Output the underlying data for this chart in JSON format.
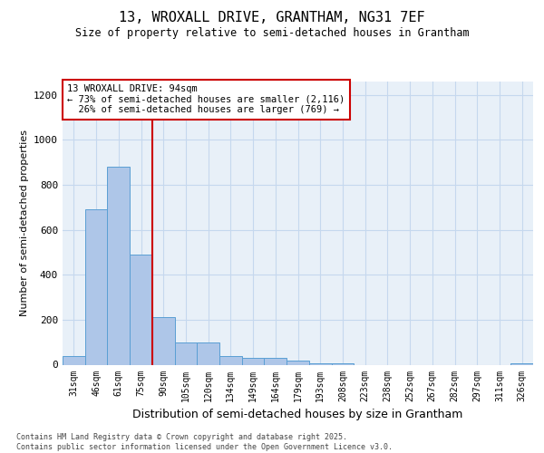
{
  "title_line1": "13, WROXALL DRIVE, GRANTHAM, NG31 7EF",
  "title_line2": "Size of property relative to semi-detached houses in Grantham",
  "xlabel": "Distribution of semi-detached houses by size in Grantham",
  "ylabel": "Number of semi-detached properties",
  "categories": [
    "31sqm",
    "46sqm",
    "61sqm",
    "75sqm",
    "90sqm",
    "105sqm",
    "120sqm",
    "134sqm",
    "149sqm",
    "164sqm",
    "179sqm",
    "193sqm",
    "208sqm",
    "223sqm",
    "238sqm",
    "252sqm",
    "267sqm",
    "282sqm",
    "297sqm",
    "311sqm",
    "326sqm"
  ],
  "values": [
    40,
    690,
    880,
    490,
    210,
    100,
    100,
    40,
    30,
    30,
    20,
    5,
    5,
    0,
    0,
    0,
    0,
    0,
    0,
    0,
    5
  ],
  "bar_color": "#aec6e8",
  "bar_edge_color": "#5a9fd4",
  "property_label": "13 WROXALL DRIVE: 94sqm",
  "pct_smaller": 73,
  "pct_smaller_n": 2116,
  "pct_larger": 26,
  "pct_larger_n": 769,
  "vline_x": 3.5,
  "vline_color": "#cc0000",
  "annotation_box_color": "#cc0000",
  "ylim": [
    0,
    1260
  ],
  "yticks": [
    0,
    200,
    400,
    600,
    800,
    1000,
    1200
  ],
  "grid_color": "#c5d8ee",
  "background_color": "#e8f0f8",
  "footer": "Contains HM Land Registry data © Crown copyright and database right 2025.\nContains public sector information licensed under the Open Government Licence v3.0."
}
